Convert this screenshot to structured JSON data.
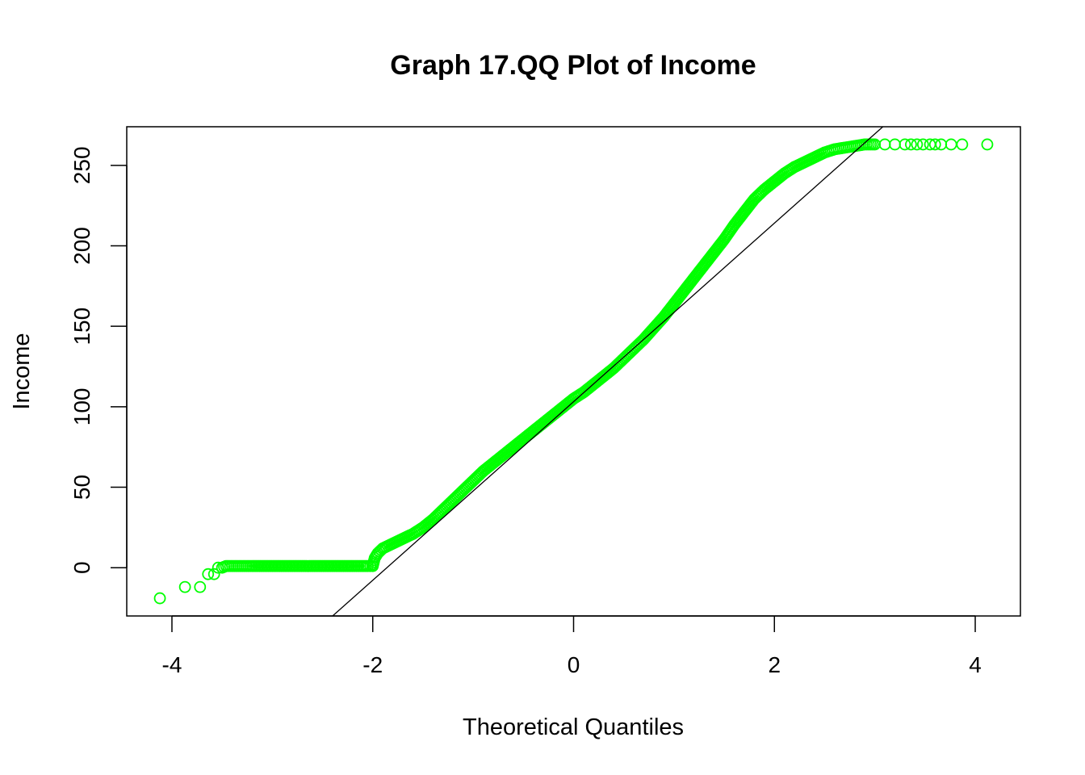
{
  "chart_data": {
    "type": "scatter",
    "title": "Graph 17.QQ Plot of Income",
    "xlabel": "Theoretical Quantiles",
    "ylabel": "Income",
    "xlim": [
      -4.45,
      4.45
    ],
    "ylim": [
      -30,
      274
    ],
    "x_ticks": [
      -4,
      -2,
      0,
      2,
      4
    ],
    "x_tick_labels": [
      "-4",
      "-2",
      "0",
      "2",
      "4"
    ],
    "y_ticks": [
      0,
      50,
      100,
      150,
      200,
      250
    ],
    "y_tick_labels": [
      "0",
      "50",
      "100",
      "150",
      "200",
      "250"
    ],
    "grid": false,
    "marker": "open-circle",
    "point_color": "#00ff00",
    "line_color": "#000000",
    "reference_line": {
      "points": [
        [
          -2.4,
          -30
        ],
        [
          3.08,
          274
        ]
      ]
    },
    "series": [
      {
        "points": [
          [
            -4.12,
            -19
          ],
          [
            -3.87,
            -12
          ],
          [
            -3.72,
            -12
          ],
          [
            -3.64,
            -4
          ],
          [
            -3.58,
            -4
          ],
          [
            -3.54,
            0
          ],
          [
            -3.5,
            0
          ],
          [
            -3.46,
            1
          ],
          [
            -3.42,
            1
          ],
          [
            -3.38,
            1
          ],
          [
            -3.3,
            1
          ],
          [
            -3.2,
            1
          ],
          [
            -3.0,
            1
          ],
          [
            -2.8,
            1
          ],
          [
            -2.6,
            1
          ],
          [
            -2.4,
            1
          ],
          [
            -2.2,
            1
          ],
          [
            -2.05,
            1
          ],
          [
            -2.0,
            1
          ],
          [
            -1.98,
            6
          ],
          [
            -1.95,
            9
          ],
          [
            -1.9,
            12
          ],
          [
            -1.8,
            15
          ],
          [
            -1.7,
            18
          ],
          [
            -1.6,
            21
          ],
          [
            -1.5,
            25
          ],
          [
            -1.4,
            30
          ],
          [
            -1.3,
            36
          ],
          [
            -1.2,
            42
          ],
          [
            -1.1,
            48
          ],
          [
            -1.0,
            54
          ],
          [
            -0.9,
            60
          ],
          [
            -0.8,
            65
          ],
          [
            -0.7,
            70
          ],
          [
            -0.6,
            75
          ],
          [
            -0.5,
            80
          ],
          [
            -0.4,
            85
          ],
          [
            -0.3,
            90
          ],
          [
            -0.2,
            95
          ],
          [
            -0.1,
            100
          ],
          [
            0.0,
            105
          ],
          [
            0.1,
            109
          ],
          [
            0.2,
            114
          ],
          [
            0.3,
            119
          ],
          [
            0.4,
            124
          ],
          [
            0.5,
            130
          ],
          [
            0.6,
            136
          ],
          [
            0.7,
            142
          ],
          [
            0.8,
            149
          ],
          [
            0.9,
            156
          ],
          [
            1.0,
            164
          ],
          [
            1.1,
            172
          ],
          [
            1.2,
            180
          ],
          [
            1.3,
            188
          ],
          [
            1.4,
            196
          ],
          [
            1.5,
            204
          ],
          [
            1.6,
            213
          ],
          [
            1.7,
            221
          ],
          [
            1.8,
            229
          ],
          [
            1.9,
            235
          ],
          [
            2.0,
            240
          ],
          [
            2.1,
            245
          ],
          [
            2.2,
            249
          ],
          [
            2.3,
            252
          ],
          [
            2.4,
            255
          ],
          [
            2.5,
            258
          ],
          [
            2.6,
            260
          ],
          [
            2.7,
            261
          ],
          [
            2.8,
            262
          ],
          [
            2.9,
            263
          ],
          [
            3.0,
            263
          ],
          [
            3.1,
            263
          ],
          [
            3.2,
            263
          ],
          [
            3.3,
            263
          ],
          [
            3.36,
            263
          ],
          [
            3.42,
            263
          ],
          [
            3.48,
            263
          ],
          [
            3.55,
            263
          ],
          [
            3.6,
            263
          ],
          [
            3.66,
            263
          ],
          [
            3.76,
            263
          ],
          [
            3.87,
            263
          ],
          [
            4.12,
            263
          ]
        ]
      }
    ]
  }
}
